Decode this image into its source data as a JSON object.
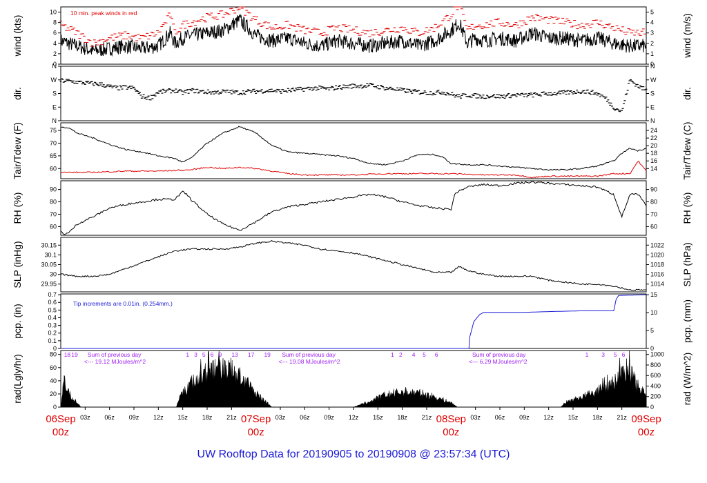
{
  "title": "UW Rooftop Data for 20190905  to  20190908 @ 23:57:34  (UTC)",
  "colors": {
    "red": "#e00000",
    "blue": "#1a1ad6",
    "purple": "#a020f0",
    "black": "#000000"
  },
  "time_axis": {
    "range_hours": [
      0,
      72
    ],
    "hour_labels": [
      "03z",
      "06z",
      "09z",
      "12z",
      "15z",
      "18z",
      "21z",
      "03z",
      "06z",
      "09z",
      "12z",
      "15z",
      "18z",
      "21z",
      "03z",
      "06z",
      "09z",
      "12z",
      "15z",
      "18z",
      "21z"
    ],
    "hour_label_positions_h": [
      3,
      6,
      9,
      12,
      15,
      18,
      21,
      27,
      30,
      33,
      36,
      39,
      42,
      45,
      51,
      54,
      57,
      60,
      63,
      66,
      69
    ],
    "day_labels": [
      {
        "date": "06Sep",
        "hour": "00z",
        "h": 0
      },
      {
        "date": "07Sep",
        "hour": "00z",
        "h": 24
      },
      {
        "date": "08Sep",
        "hour": "00z",
        "h": 48
      },
      {
        "date": "09Sep",
        "hour": "00z",
        "h": 72
      }
    ]
  },
  "chart_data": [
    {
      "panel": "wind",
      "type": "line",
      "ylabel_left": "wind (kts)",
      "ylabel_right": "wind (m/s)",
      "yticks_left": [
        0,
        2,
        4,
        6,
        8,
        10
      ],
      "ylim": [
        0,
        11
      ],
      "yticks_right": [
        0,
        1,
        2,
        3,
        4,
        5
      ],
      "annotation": "10 min. peak winds in red",
      "series": [
        {
          "name": "wind",
          "color": "#000000",
          "x": [
            0,
            2,
            4,
            6,
            8,
            10,
            12,
            13.5,
            14,
            15,
            16,
            18,
            20,
            22,
            24,
            26,
            28,
            30,
            32,
            34,
            36,
            38,
            40,
            42,
            44,
            46,
            48,
            49,
            50,
            51,
            52,
            54,
            56,
            58,
            60,
            62,
            64,
            66,
            68,
            70,
            72
          ],
          "y": [
            4.5,
            3.5,
            2.5,
            3.0,
            3.5,
            3.0,
            3.5,
            6.0,
            4.0,
            5.0,
            5.5,
            6.0,
            6.5,
            8.5,
            5.5,
            4.5,
            5.0,
            4.0,
            3.5,
            4.5,
            4.0,
            3.5,
            4.0,
            4.5,
            3.5,
            4.5,
            6.5,
            8.0,
            4.0,
            5.0,
            4.5,
            5.0,
            4.5,
            6.0,
            5.0,
            5.0,
            4.5,
            5.0,
            4.0,
            3.5,
            3.5
          ]
        },
        {
          "name": "10 min. peak winds",
          "color": "#e00000",
          "x": [
            0,
            2,
            4,
            6,
            8,
            10,
            12,
            13.5,
            14,
            15,
            16,
            18,
            20,
            22,
            24,
            26,
            28,
            30,
            32,
            34,
            36,
            38,
            40,
            42,
            44,
            46,
            48,
            49,
            50,
            51,
            52,
            54,
            56,
            58,
            60,
            62,
            64,
            66,
            68,
            70,
            72
          ],
          "y": [
            7.5,
            6.0,
            4.0,
            5.0,
            5.5,
            5.0,
            6.0,
            9.5,
            6.0,
            7.5,
            8.0,
            9.0,
            9.5,
            11.0,
            8.5,
            7.0,
            7.5,
            6.5,
            6.0,
            7.0,
            6.5,
            6.0,
            6.5,
            7.0,
            6.0,
            7.0,
            9.5,
            11.5,
            6.5,
            7.5,
            7.5,
            8.0,
            7.5,
            9.0,
            8.5,
            8.0,
            7.5,
            8.0,
            7.0,
            6.0,
            6.0
          ]
        }
      ]
    },
    {
      "panel": "direction",
      "type": "scatter",
      "ylabel_left": "dir.",
      "ylabel_right": "dir.",
      "ytick_labels": [
        "N",
        "E",
        "S",
        "W",
        "N"
      ],
      "ylim": [
        0,
        360
      ],
      "series": [
        {
          "name": "dir",
          "color": "#000000",
          "x": [
            0,
            1,
            2,
            3,
            4,
            5,
            6,
            7,
            8,
            9,
            10,
            11,
            12,
            13,
            14,
            15,
            16,
            17,
            18,
            19,
            20,
            21,
            22,
            23,
            24,
            25,
            26,
            27,
            28,
            29,
            30,
            31,
            32,
            33,
            34,
            35,
            36,
            37,
            38,
            39,
            40,
            41,
            42,
            43,
            44,
            45,
            46,
            47,
            48,
            49,
            50,
            51,
            52,
            53,
            54,
            55,
            56,
            57,
            58,
            59,
            60,
            61,
            62,
            63,
            64,
            65,
            66,
            67,
            68,
            69,
            70,
            71,
            72
          ],
          "y": [
            265,
            262,
            255,
            250,
            245,
            240,
            225,
            215,
            220,
            215,
            160,
            150,
            190,
            195,
            200,
            185,
            200,
            195,
            190,
            188,
            192,
            190,
            185,
            192,
            195,
            198,
            200,
            195,
            200,
            205,
            210,
            215,
            215,
            210,
            220,
            225,
            230,
            230,
            235,
            225,
            215,
            210,
            200,
            195,
            190,
            185,
            185,
            190,
            175,
            160,
            170,
            165,
            160,
            165,
            160,
            165,
            170,
            168,
            170,
            175,
            180,
            180,
            185,
            190,
            195,
            190,
            180,
            150,
            90,
            60,
            270,
            230,
            200
          ]
        }
      ]
    },
    {
      "panel": "temperature",
      "type": "line",
      "ylabel_left": "Tair/Tdew (F)",
      "ylabel_right": "Tair/Tdew (C)",
      "yticks_left": [
        60,
        65,
        70,
        75
      ],
      "ylim": [
        56,
        78
      ],
      "yticks_right": [
        14,
        16,
        18,
        20,
        22,
        24
      ],
      "series": [
        {
          "name": "Tair",
          "color": "#000000",
          "x": [
            0,
            1,
            2,
            4,
            6,
            8,
            10,
            12,
            14,
            15,
            16,
            18,
            20,
            22,
            24,
            26,
            28,
            30,
            32,
            34,
            36,
            38,
            40,
            42,
            44,
            46,
            47,
            48,
            50,
            52,
            54,
            56,
            58,
            60,
            62,
            64,
            66,
            68,
            69,
            70,
            71,
            72
          ],
          "y": [
            76.5,
            76,
            74,
            72,
            69.5,
            67.5,
            66.5,
            65,
            64,
            62.5,
            64,
            70,
            74,
            76.5,
            74,
            69,
            66.5,
            66,
            65.5,
            65,
            64,
            62,
            61.5,
            63,
            65.5,
            65.5,
            64.5,
            62,
            61.5,
            61.5,
            61,
            60.5,
            60,
            59.5,
            59.5,
            60,
            61,
            63,
            66,
            68,
            67,
            68
          ]
        },
        {
          "name": "Tdew",
          "color": "#e00000",
          "x": [
            0,
            4,
            8,
            12,
            16,
            18,
            20,
            22,
            24,
            26,
            28,
            30,
            32,
            34,
            36,
            40,
            44,
            48,
            52,
            56,
            58,
            60,
            62,
            64,
            66,
            68,
            70,
            71,
            72
          ],
          "y": [
            58.5,
            58.5,
            59,
            59,
            59.5,
            60.5,
            60,
            60.5,
            60,
            59,
            58,
            57.5,
            57.5,
            57.5,
            57.5,
            58,
            58,
            58,
            57.5,
            57.5,
            56.5,
            57,
            57,
            57,
            57,
            58,
            58,
            63,
            59
          ]
        }
      ]
    },
    {
      "panel": "humidity",
      "type": "line",
      "ylabel_left": "RH (%)",
      "ylabel_right": "RH (%)",
      "yticks_left": [
        60,
        70,
        80,
        90
      ],
      "ylim": [
        53,
        97
      ],
      "yticks_right": [
        60,
        70,
        80,
        90
      ],
      "series": [
        {
          "name": "RH",
          "color": "#000000",
          "x": [
            0,
            0.5,
            1,
            2,
            4,
            6,
            8,
            10,
            12,
            14,
            15,
            15.5,
            16,
            18,
            20,
            22,
            24,
            26,
            28,
            30,
            32,
            34,
            36,
            38,
            40,
            42,
            44,
            46,
            48,
            48.5,
            50,
            52,
            54,
            56,
            58,
            60,
            62,
            64,
            66,
            68,
            69,
            70,
            71,
            72
          ],
          "y": [
            56,
            54,
            55,
            62,
            68,
            75,
            78,
            80,
            82,
            82,
            88,
            86,
            82,
            70,
            62,
            57,
            64,
            72,
            76,
            78,
            80,
            82,
            84,
            86,
            84,
            80,
            77,
            75,
            74,
            87,
            92,
            94,
            93,
            95,
            96,
            95,
            94,
            93,
            92,
            86,
            68,
            86,
            86,
            77
          ]
        }
      ]
    },
    {
      "panel": "pressure",
      "type": "line",
      "ylabel_left": "SLP (inHg)",
      "ylabel_right": "SLP (hPa)",
      "yticks_left": [
        29.95,
        30.0,
        30.05,
        30.1,
        30.15
      ],
      "ylim": [
        29.91,
        30.19
      ],
      "yticks_right": [
        1014,
        1016,
        1018,
        1020,
        1022
      ],
      "series": [
        {
          "name": "SLP",
          "color": "#000000",
          "x": [
            0,
            2,
            4,
            6,
            8,
            10,
            12,
            14,
            16,
            18,
            20,
            22,
            24,
            26,
            28,
            30,
            32,
            34,
            36,
            38,
            40,
            42,
            44,
            46,
            48,
            49,
            50,
            52,
            54,
            56,
            58,
            60,
            62,
            64,
            66,
            68,
            70,
            72
          ],
          "y": [
            30.0,
            29.99,
            29.99,
            30.0,
            30.03,
            30.06,
            30.09,
            30.12,
            30.13,
            30.13,
            30.13,
            30.14,
            30.16,
            30.17,
            30.16,
            30.15,
            30.13,
            30.12,
            30.11,
            30.09,
            30.07,
            30.05,
            30.03,
            30.01,
            30.01,
            30.04,
            30.02,
            30.0,
            29.99,
            29.99,
            29.99,
            29.97,
            29.96,
            29.95,
            29.95,
            29.94,
            29.92,
            29.92
          ]
        }
      ]
    },
    {
      "panel": "precipitation",
      "type": "line",
      "ylabel_left": "pcp. (in)",
      "ylabel_right": "pcp. (mm)",
      "yticks_left": [
        0,
        0.1,
        0.2,
        0.3,
        0.4,
        0.5,
        0.6,
        0.7
      ],
      "ylim": [
        0,
        0.71
      ],
      "yticks_right": [
        0,
        5,
        10,
        15
      ],
      "annotation": "Tip increments are 0.01in. (0.254mm.)",
      "series": [
        {
          "name": "pcp",
          "color": "#1a1ad6",
          "x": [
            0,
            50.2,
            50.3,
            50.8,
            51.5,
            52,
            57,
            60,
            64,
            66,
            68,
            68.3,
            68.6,
            72
          ],
          "y": [
            0,
            0,
            0.15,
            0.35,
            0.44,
            0.47,
            0.47,
            0.48,
            0.49,
            0.49,
            0.49,
            0.64,
            0.69,
            0.7
          ]
        }
      ]
    },
    {
      "panel": "radiation",
      "type": "area",
      "ylabel_left": "rad(Lgly/hr)",
      "ylabel_right": "rad (W/m^2)",
      "yticks_left": [
        0,
        20,
        40,
        60,
        80
      ],
      "ylim": [
        0,
        86
      ],
      "yticks_right": [
        0,
        200,
        400,
        600,
        800,
        1000
      ],
      "series": [
        {
          "name": "rad",
          "color": "#000000",
          "x": [
            0,
            0.3,
            1,
            2,
            2.5,
            14.2,
            14.5,
            16,
            18,
            20,
            21,
            22,
            24,
            26,
            36,
            38,
            40,
            42,
            44,
            46,
            48,
            48.8,
            49,
            61.5,
            62,
            64,
            66,
            68,
            69,
            70,
            71,
            72
          ],
          "y": [
            0,
            38,
            25,
            8,
            0,
            0,
            15,
            42,
            62,
            70,
            65,
            55,
            25,
            0,
            0,
            10,
            22,
            27,
            25,
            18,
            8,
            0,
            0,
            0,
            8,
            18,
            28,
            42,
            60,
            70,
            30,
            25
          ]
        }
      ],
      "hour_ticks": [
        "18",
        "19",
        "1",
        "3",
        "5",
        "6",
        "9",
        "13",
        "17",
        "19",
        "1",
        "2",
        "4",
        "5",
        "6",
        "1",
        "3",
        "5",
        "6"
      ],
      "daily_totals": [
        {
          "label": "Sum of previous day",
          "value": "<--- 19.12 MJoules/m^2"
        },
        {
          "label": "Sum of previous day",
          "value": "<--- 19.08 MJoules/m^2"
        },
        {
          "label": "Sum of previous day",
          "value": "<--- 6.29 MJoules/m^2"
        }
      ]
    }
  ]
}
